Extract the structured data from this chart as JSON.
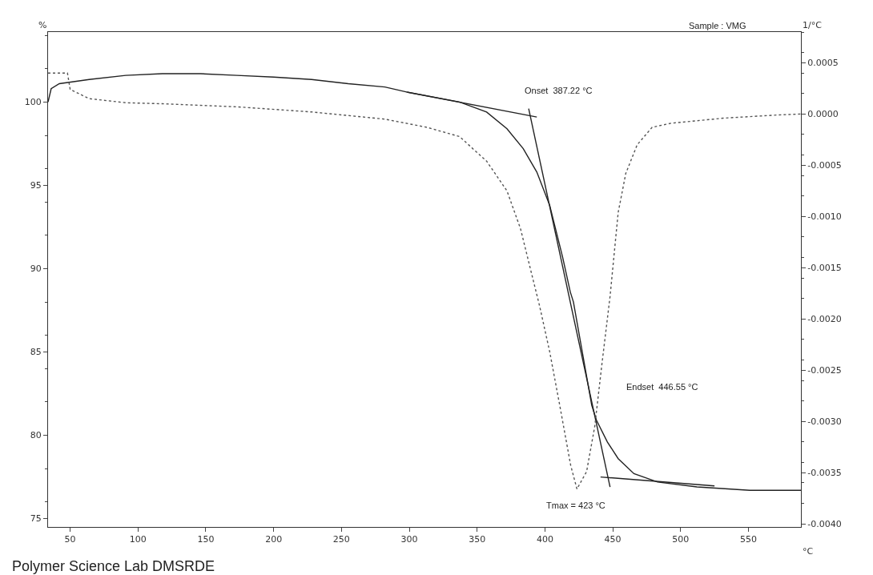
{
  "chart_data": {
    "type": "line",
    "xlabel": "°C",
    "ylabel": "%",
    "y2label": "1/°C",
    "marker": "none",
    "xlim": [
      33.7,
      588.7
    ],
    "xticks": [
      50,
      100,
      150,
      200,
      250,
      300,
      350,
      400,
      450,
      500,
      550
    ],
    "ylim": [
      74.5,
      104.2
    ],
    "yticks": [
      75,
      80,
      85,
      90,
      95,
      100
    ],
    "y2lim": [
      -0.00403,
      0.0008
    ],
    "y2ticks": [
      {
        "value": 0.0005,
        "label": "0.0005"
      },
      {
        "value": 0,
        "label": "0.0000"
      },
      {
        "value": -0.0005,
        "label": "-0.0005"
      },
      {
        "value": -0.001,
        "label": "-0.0010"
      },
      {
        "value": -0.0015,
        "label": "-0.0015"
      },
      {
        "value": -0.002,
        "label": "-0.0020"
      },
      {
        "value": -0.0025,
        "label": "-0.0025"
      },
      {
        "value": -0.003,
        "label": "-0.0030"
      },
      {
        "value": -0.0035,
        "label": "-0.0035"
      },
      {
        "value": -0.004,
        "label": "-0.0040"
      }
    ],
    "series": [
      {
        "color": "#222222",
        "line_style": "solid",
        "x": [
          33.7,
          36,
          42,
          64,
          91,
          118,
          146,
          173,
          200,
          228,
          255,
          282,
          298,
          337,
          357,
          372,
          384,
          394,
          403.5,
          413,
          418.7,
          421,
          434.5,
          438,
          446,
          454,
          465.6,
          483,
          512,
          551,
          588.7
        ],
        "values": [
          100.0,
          100.8,
          101.1,
          101.35,
          101.6,
          101.7,
          101.7,
          101.6,
          101.5,
          101.35,
          101.1,
          100.9,
          100.6,
          100.0,
          99.4,
          98.4,
          97.2,
          95.8,
          93.8,
          90.7,
          88.6,
          88.0,
          81.8,
          80.9,
          79.6,
          78.6,
          77.7,
          77.2,
          76.9,
          76.7,
          76.7
        ]
      },
      {
        "color": "#555555",
        "line_style": "dotted",
        "axis": "y2",
        "x": [
          33.7,
          48,
          50,
          64,
          91,
          118,
          173,
          228,
          282,
          313,
          337,
          357,
          372,
          382,
          391.5,
          396,
          403.5,
          411,
          419,
          423.6,
          430.7,
          436.7,
          442,
          448,
          454,
          459.6,
          468,
          479,
          493,
          532,
          571,
          588.7
        ],
        "values": [
          0.0004,
          0.0004,
          0.00024,
          0.00015,
          0.00011,
          0.0001,
          7e-05,
          2e-05,
          -5e-05,
          -0.00013,
          -0.00022,
          -0.00046,
          -0.00075,
          -0.00112,
          -0.00163,
          -0.00187,
          -0.00232,
          -0.00285,
          -0.00343,
          -0.00366,
          -0.00349,
          -0.00305,
          -0.00244,
          -0.00178,
          -0.00096,
          -0.00058,
          -0.0003,
          -0.00013,
          -9e-05,
          -4e-05,
          -1e-05,
          0
        ]
      },
      {
        "color": "#222222",
        "line_style": "solid",
        "x": [
          298,
          394
        ],
        "values": [
          100.6,
          99.1
        ]
      },
      {
        "color": "#222222",
        "line_style": "solid",
        "x": [
          388,
          448
        ],
        "values": [
          99.6,
          76.9
        ]
      },
      {
        "color": "#222222",
        "line_style": "solid",
        "x": [
          441,
          525
        ],
        "values": [
          77.5,
          76.96
        ]
      }
    ],
    "annotations": [
      "Onset  387.22 °C",
      "Endset  446.55 °C",
      "Tmax = 423 °C",
      "Sample : VMG",
      "Polymer Science Lab DMSRDE"
    ]
  }
}
